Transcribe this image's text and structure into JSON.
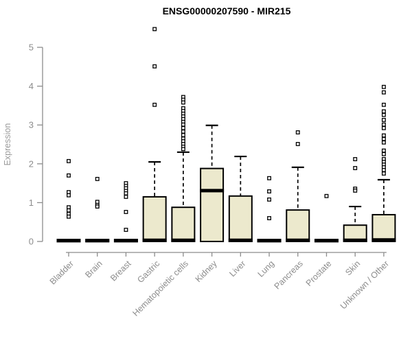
{
  "title": "ENSG00000207590 - MIR215",
  "chart_data": {
    "type": "boxplot",
    "title": "ENSG00000207590 - MIR215",
    "xlabel": "",
    "ylabel": "Expression",
    "ylim": [
      0,
      5.5
    ],
    "yticks": [
      0,
      1,
      2,
      3,
      4,
      5
    ],
    "grid": false,
    "legend": "none",
    "categories": [
      "Bladder",
      "Brain",
      "Breast",
      "Gastric",
      "Hematopoietic cells",
      "Kidney",
      "Liver",
      "Lung",
      "Pancreas",
      "Prostate",
      "Skin",
      "Unknown / Other"
    ],
    "series": [
      {
        "name": "Bladder",
        "slug": "bladder",
        "q1": 0,
        "median": 0.02,
        "q3": 0.05,
        "whisker_low": 0,
        "whisker_high": 0.05,
        "outliers": [
          2.07,
          1.7,
          1.27,
          1.19,
          0.88,
          0.8,
          0.71,
          0.64
        ]
      },
      {
        "name": "Brain",
        "slug": "brain",
        "q1": 0,
        "median": 0.02,
        "q3": 0.05,
        "whisker_low": 0,
        "whisker_high": 0.05,
        "outliers": [
          1.61,
          1.02,
          0.94,
          0.9
        ]
      },
      {
        "name": "Breast",
        "slug": "breast",
        "q1": 0,
        "median": 0.02,
        "q3": 0.05,
        "whisker_low": 0,
        "whisker_high": 0.05,
        "outliers": [
          1.5,
          1.43,
          1.37,
          1.3,
          1.24,
          1.15,
          0.76,
          0.3
        ]
      },
      {
        "name": "Gastric",
        "slug": "gastric",
        "q1": 0,
        "median": 0.03,
        "q3": 1.15,
        "whisker_low": 0,
        "whisker_high": 2.05,
        "outliers": [
          5.47,
          4.51,
          3.52
        ]
      },
      {
        "name": "Hematopoietic cells",
        "slug": "hematopoietic-cells",
        "q1": 0,
        "median": 0.03,
        "q3": 0.88,
        "whisker_low": 0,
        "whisker_high": 2.3,
        "outliers": [
          3.72,
          3.65,
          3.58,
          3.43,
          3.36,
          3.29,
          3.22,
          3.15,
          3.08,
          3.01,
          2.92,
          2.83,
          2.74,
          2.65,
          2.58,
          2.51,
          2.44,
          2.38
        ]
      },
      {
        "name": "Kidney",
        "slug": "kidney",
        "q1": 0,
        "median": 1.31,
        "q3": 1.88,
        "whisker_low": 0,
        "whisker_high": 2.99,
        "outliers": []
      },
      {
        "name": "Liver",
        "slug": "liver",
        "q1": 0,
        "median": 0.03,
        "q3": 1.17,
        "whisker_low": 0,
        "whisker_high": 2.19,
        "outliers": []
      },
      {
        "name": "Lung",
        "slug": "lung",
        "q1": 0,
        "median": 0.02,
        "q3": 0.05,
        "whisker_low": 0,
        "whisker_high": 0.05,
        "outliers": [
          1.63,
          1.29,
          1.08,
          0.6
        ]
      },
      {
        "name": "Pancreas",
        "slug": "pancreas",
        "q1": 0,
        "median": 0.03,
        "q3": 0.81,
        "whisker_low": 0,
        "whisker_high": 1.91,
        "outliers": [
          2.81,
          2.51
        ]
      },
      {
        "name": "Prostate",
        "slug": "prostate",
        "q1": 0,
        "median": 0.02,
        "q3": 0.05,
        "whisker_low": 0,
        "whisker_high": 0.05,
        "outliers": [
          1.17
        ]
      },
      {
        "name": "Skin",
        "slug": "skin",
        "q1": 0,
        "median": 0.03,
        "q3": 0.42,
        "whisker_low": 0,
        "whisker_high": 0.9,
        "outliers": [
          2.12,
          1.89,
          1.36,
          1.31
        ]
      },
      {
        "name": "Unknown / Other",
        "slug": "unknown-other",
        "q1": 0,
        "median": 0.04,
        "q3": 0.69,
        "whisker_low": 0,
        "whisker_high": 1.59,
        "outliers": [
          3.98,
          3.84,
          3.52,
          3.35,
          3.26,
          3.13,
          3.01,
          2.92,
          2.73,
          2.64,
          2.55,
          2.34,
          2.25,
          2.12,
          2.05,
          1.98,
          1.91,
          1.84,
          1.75
        ]
      }
    ],
    "colors": {
      "box_fill": "#ece9cd",
      "box_stroke": "#000000",
      "median": "#000000",
      "whisker": "#000000",
      "outlier_stroke": "#000000",
      "outlier_fill": "#ffffff",
      "axis": "#8c8c8c",
      "tick_label": "#8c8c8c",
      "ylabel_color": "#9a9a9a",
      "title_color": "#000000",
      "background": "#ffffff"
    }
  }
}
